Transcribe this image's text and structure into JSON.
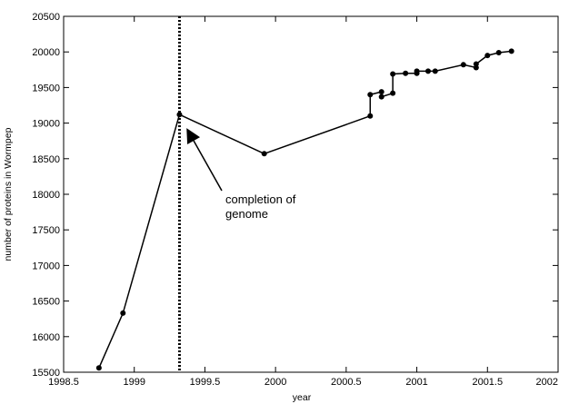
{
  "chart_data": {
    "type": "line",
    "title": "",
    "xlabel": "year",
    "ylabel": "number of proteins in Wormpep",
    "xlim": [
      1998.5,
      2002
    ],
    "ylim": [
      15500,
      20500
    ],
    "xticks": [
      1998.5,
      1999,
      1999.5,
      2000,
      2000.5,
      2001,
      2001.5,
      2002
    ],
    "xtick_labels": [
      "1998.5",
      "1999",
      "1999.5",
      "2000",
      "2000.5",
      "2001",
      "2001.5",
      "2002"
    ],
    "yticks": [
      15500,
      16000,
      16500,
      17000,
      17500,
      18000,
      18500,
      19000,
      19500,
      20000,
      20500
    ],
    "ytick_labels": [
      "15500",
      "16000",
      "16500",
      "17000",
      "17500",
      "18000",
      "18500",
      "19000",
      "19500",
      "20000",
      "20500"
    ],
    "grid": false,
    "legend": "none",
    "series": [
      {
        "x": [
          1998.75,
          1998.92,
          1999.32,
          1999.92,
          2000.67,
          2000.67,
          2000.75,
          2000.75,
          2000.83,
          2000.83,
          2000.92,
          2001.0,
          2001.0,
          2001.08,
          2001.13,
          2001.33,
          2001.42,
          2001.42,
          2001.5,
          2001.58,
          2001.67
        ],
        "y": [
          15560,
          16330,
          19120,
          18570,
          19100,
          19400,
          19440,
          19370,
          19420,
          19690,
          19700,
          19700,
          19730,
          19730,
          19730,
          19820,
          19780,
          19830,
          19950,
          19990,
          20010
        ]
      }
    ],
    "reference_line": {
      "x": 1999.32,
      "style": "dotted"
    },
    "annotation": {
      "lines": [
        "completion of",
        "genome"
      ],
      "points_to": {
        "x": 1999.37,
        "y": 18930
      }
    }
  },
  "colors": {
    "line": "#000000",
    "background": "#ffffff"
  }
}
